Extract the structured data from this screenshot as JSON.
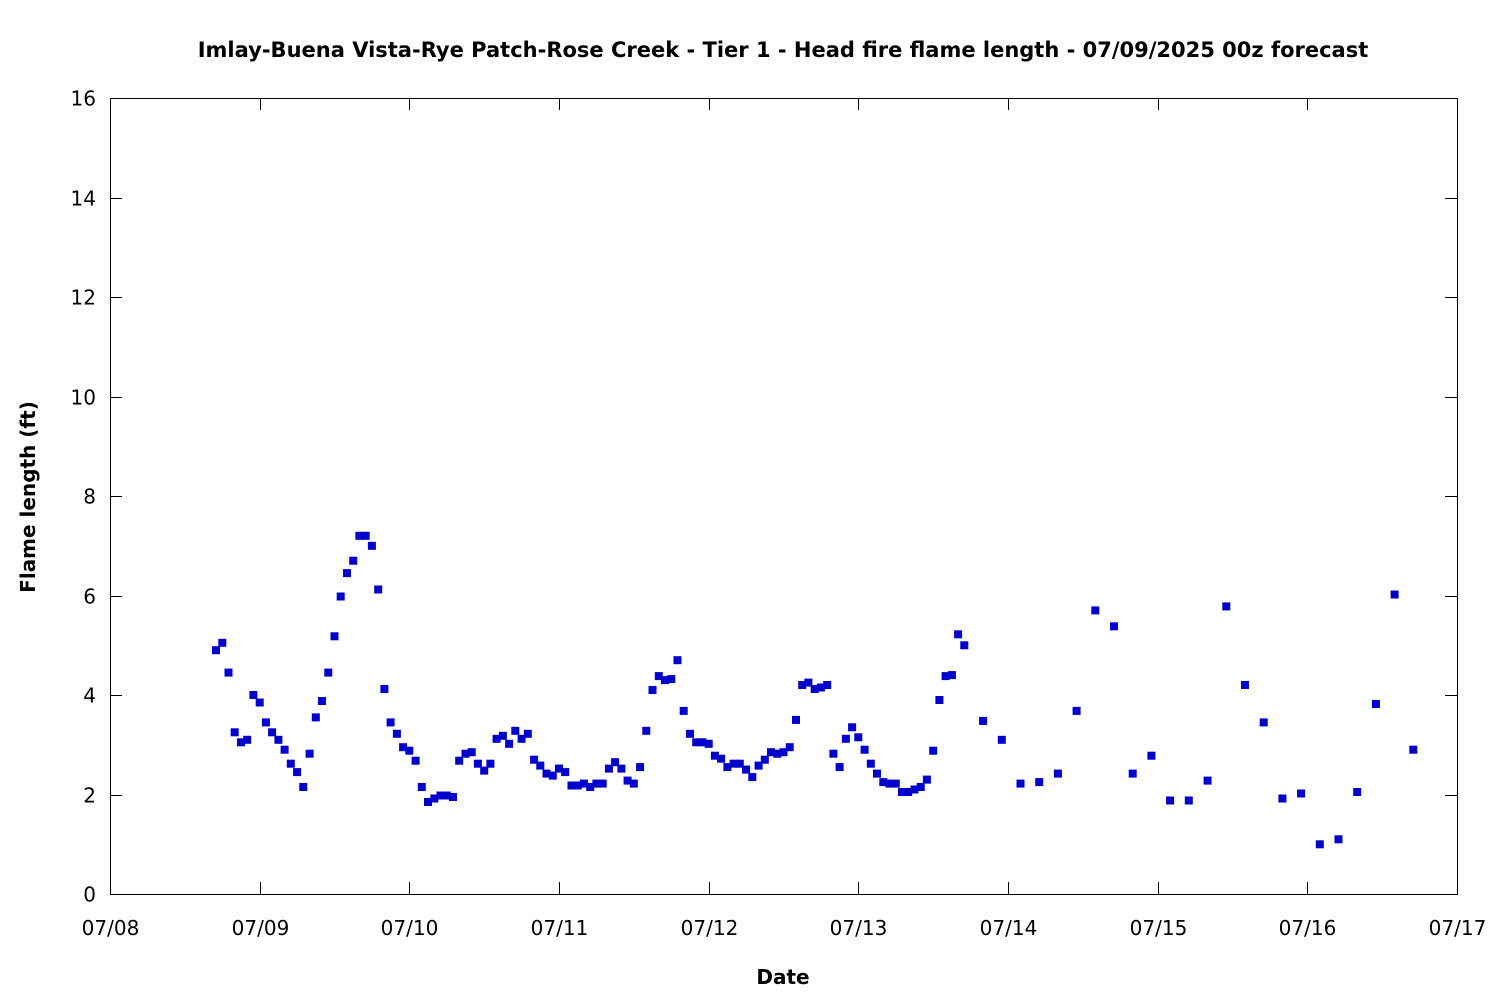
{
  "chart_data": {
    "type": "scatter",
    "title": "Imlay-Buena Vista-Rye Patch-Rose Creek - Tier 1 - Head fire flame length - 07/09/2025 00z forecast",
    "xlabel": "Date",
    "ylabel": "Flame length (ft)",
    "xlim": [
      "07/08",
      "07/17"
    ],
    "ylim": [
      0,
      16
    ],
    "x_ticks": [
      "07/08",
      "07/09",
      "07/10",
      "07/11",
      "07/12",
      "07/13",
      "07/14",
      "07/15",
      "07/16",
      "07/17"
    ],
    "y_ticks": [
      "0",
      "2",
      "4",
      "6",
      "8",
      "10",
      "12",
      "14",
      "16"
    ],
    "grid": false,
    "marker_color": "#0000cc",
    "series": [
      {
        "x": [
          "07/08 17:00",
          "07/08 18:00",
          "07/08 19:00",
          "07/08 20:00",
          "07/08 21:00",
          "07/08 22:00",
          "07/08 23:00",
          "07/09 00:00",
          "07/09 01:00",
          "07/09 02:00",
          "07/09 03:00",
          "07/09 04:00",
          "07/09 05:00",
          "07/09 06:00",
          "07/09 07:00",
          "07/09 08:00",
          "07/09 09:00",
          "07/09 10:00",
          "07/09 11:00",
          "07/09 12:00",
          "07/09 13:00",
          "07/09 14:00",
          "07/09 15:00",
          "07/09 16:00",
          "07/09 17:00",
          "07/09 18:00",
          "07/09 19:00",
          "07/09 20:00",
          "07/09 21:00",
          "07/09 22:00",
          "07/09 23:00",
          "07/10 00:00",
          "07/10 01:00",
          "07/10 02:00",
          "07/10 03:00",
          "07/10 04:00",
          "07/10 05:00",
          "07/10 06:00",
          "07/10 07:00",
          "07/10 08:00",
          "07/10 09:00",
          "07/10 10:00",
          "07/10 11:00",
          "07/10 12:00",
          "07/10 13:00",
          "07/10 14:00",
          "07/10 15:00",
          "07/10 16:00",
          "07/10 17:00",
          "07/10 18:00",
          "07/10 19:00",
          "07/10 20:00",
          "07/10 21:00",
          "07/10 22:00",
          "07/10 23:00",
          "07/11 00:00",
          "07/11 01:00",
          "07/11 02:00",
          "07/11 03:00",
          "07/11 04:00",
          "07/11 05:00",
          "07/11 06:00",
          "07/11 07:00",
          "07/11 08:00",
          "07/11 09:00",
          "07/11 10:00",
          "07/11 11:00",
          "07/11 12:00",
          "07/11 13:00",
          "07/11 14:00",
          "07/11 15:00",
          "07/11 16:00",
          "07/11 17:00",
          "07/11 18:00",
          "07/11 19:00",
          "07/11 20:00",
          "07/11 21:00",
          "07/11 22:00",
          "07/11 23:00",
          "07/12 00:00",
          "07/12 01:00",
          "07/12 02:00",
          "07/12 03:00",
          "07/12 04:00",
          "07/12 05:00",
          "07/12 06:00",
          "07/12 07:00",
          "07/12 08:00",
          "07/12 09:00",
          "07/12 10:00",
          "07/12 11:00",
          "07/12 12:00",
          "07/12 13:00",
          "07/12 14:00",
          "07/12 15:00",
          "07/12 16:00",
          "07/12 17:00",
          "07/12 18:00",
          "07/12 19:00",
          "07/12 20:00",
          "07/12 21:00",
          "07/12 22:00",
          "07/12 23:00",
          "07/13 00:00",
          "07/13 01:00",
          "07/13 02:00",
          "07/13 03:00",
          "07/13 04:00",
          "07/13 05:00",
          "07/13 06:00",
          "07/13 07:00",
          "07/13 08:00",
          "07/13 09:00",
          "07/13 10:00",
          "07/13 11:00",
          "07/13 12:00",
          "07/13 13:00",
          "07/13 14:00",
          "07/13 15:00",
          "07/13 16:00",
          "07/13 17:00",
          "07/13 20:00",
          "07/13 23:00",
          "07/14 02:00",
          "07/14 05:00",
          "07/14 08:00",
          "07/14 11:00",
          "07/14 14:00",
          "07/14 17:00",
          "07/14 20:00",
          "07/14 23:00",
          "07/15 02:00",
          "07/15 05:00",
          "07/15 08:00",
          "07/15 11:00",
          "07/15 14:00",
          "07/15 17:00",
          "07/15 20:00",
          "07/15 23:00",
          "07/16 02:00",
          "07/16 05:00",
          "07/16 08:00",
          "07/16 11:00",
          "07/16 14:00",
          "07/16 17:00"
        ],
        "y": [
          4.9,
          5.05,
          4.45,
          3.25,
          3.05,
          3.1,
          4.0,
          3.85,
          3.45,
          3.25,
          3.1,
          2.9,
          2.62,
          2.45,
          2.15,
          2.82,
          3.55,
          3.88,
          4.45,
          5.18,
          5.98,
          6.45,
          6.7,
          7.2,
          7.2,
          7.0,
          6.12,
          4.12,
          3.45,
          3.22,
          2.95,
          2.88,
          2.68,
          2.15,
          1.85,
          1.92,
          1.98,
          1.98,
          1.95,
          2.68,
          2.82,
          2.85,
          2.62,
          2.48,
          2.62,
          3.12,
          3.18,
          3.02,
          3.28,
          3.12,
          3.22,
          2.7,
          2.58,
          2.42,
          2.38,
          2.52,
          2.45,
          2.18,
          2.18,
          2.22,
          2.15,
          2.22,
          2.22,
          2.52,
          2.65,
          2.52,
          2.28,
          2.22,
          2.55,
          3.28,
          4.1,
          4.38,
          4.3,
          4.32,
          4.7,
          3.68,
          3.22,
          3.05,
          3.05,
          3.02,
          2.78,
          2.72,
          2.55,
          2.62,
          2.62,
          2.5,
          2.35,
          2.58,
          2.7,
          2.85,
          2.82,
          2.85,
          2.95,
          3.5,
          4.2,
          4.25,
          4.12,
          4.15,
          4.2,
          2.82,
          2.55,
          3.12,
          3.35,
          3.15,
          2.9,
          2.62,
          2.42,
          2.25,
          2.22,
          2.22,
          2.05,
          2.05,
          2.1,
          2.15,
          2.3,
          2.88,
          3.9,
          4.38,
          4.4,
          5.22,
          5.0,
          3.48,
          3.1,
          2.22,
          2.25,
          2.42,
          3.68,
          5.7,
          5.38,
          2.42,
          2.78,
          1.88,
          1.88,
          2.28,
          5.78,
          4.2,
          3.45,
          1.92,
          2.02,
          1.0,
          1.1,
          2.05,
          3.82,
          6.02,
          2.9
        ]
      }
    ]
  }
}
